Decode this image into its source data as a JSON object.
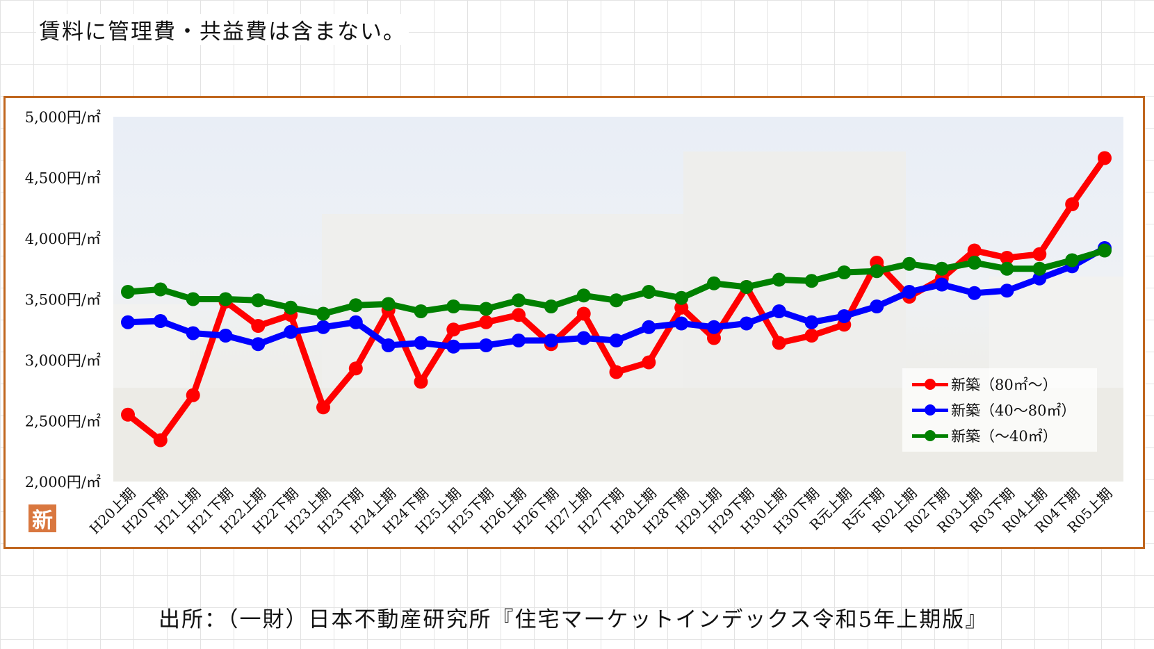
{
  "header": {
    "note": "賃料に管理費・共益費は含まない。"
  },
  "footer": {
    "source": "出所：（一財）日本不動産研究所『住宅マーケットインデックス令和5年上期版』"
  },
  "badge": {
    "label": "新"
  },
  "chart_data": {
    "type": "line",
    "title": "",
    "xlabel": "",
    "ylabel": "",
    "ylim": [
      2000,
      5000
    ],
    "yticks": [
      "2,000円/㎡",
      "2,500円/㎡",
      "3,000円/㎡",
      "3,500円/㎡",
      "4,000円/㎡",
      "4,500円/㎡",
      "5,000円/㎡"
    ],
    "ytick_values": [
      2000,
      2500,
      3000,
      3500,
      4000,
      4500,
      5000
    ],
    "grid": false,
    "legend_position": "bottom-right",
    "categories": [
      "H20上期",
      "H20下期",
      "H21上期",
      "H21下期",
      "H22上期",
      "H22下期",
      "H23上期",
      "H23下期",
      "H24上期",
      "H24下期",
      "H25上期",
      "H25下期",
      "H26上期",
      "H26下期",
      "H27上期",
      "H27下期",
      "H28上期",
      "H28下期",
      "H29上期",
      "H29下期",
      "H30上期",
      "H30下期",
      "R元上期",
      "R元下期",
      "R02上期",
      "R02下期",
      "R03上期",
      "R03下期",
      "R04上期",
      "R04下期",
      "R05上期"
    ],
    "series": [
      {
        "name": "新築（80㎡～）",
        "color": "#ff0000",
        "values": [
          2550,
          2340,
          2710,
          3480,
          3280,
          3370,
          2610,
          2930,
          3410,
          2820,
          3250,
          3310,
          3370,
          3130,
          3380,
          2900,
          2980,
          3430,
          3180,
          3600,
          3140,
          3200,
          3290,
          3800,
          3520,
          3670,
          3900,
          3840,
          3870,
          4280,
          4660
        ]
      },
      {
        "name": "新築（40～80㎡）",
        "color": "#0000ff",
        "values": [
          3310,
          3320,
          3220,
          3200,
          3130,
          3230,
          3270,
          3310,
          3120,
          3140,
          3110,
          3120,
          3160,
          3160,
          3180,
          3160,
          3270,
          3300,
          3270,
          3300,
          3400,
          3310,
          3360,
          3440,
          3560,
          3620,
          3550,
          3570,
          3670,
          3770,
          3920
        ]
      },
      {
        "name": "新築（～40㎡）",
        "color": "#008000",
        "values": [
          3560,
          3580,
          3500,
          3500,
          3490,
          3430,
          3380,
          3450,
          3460,
          3400,
          3440,
          3420,
          3490,
          3440,
          3530,
          3490,
          3560,
          3510,
          3630,
          3600,
          3660,
          3650,
          3720,
          3730,
          3790,
          3750,
          3800,
          3750,
          3750,
          3820,
          3900
        ]
      }
    ]
  }
}
